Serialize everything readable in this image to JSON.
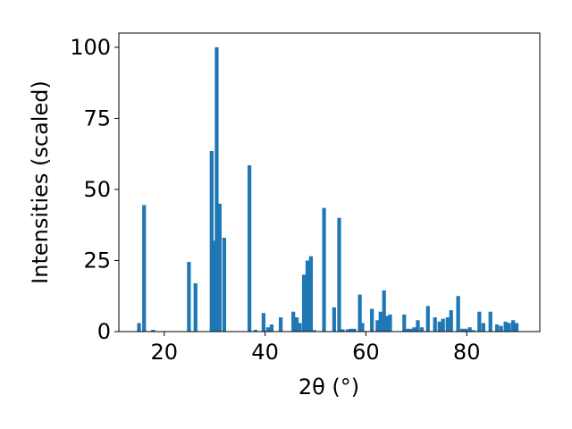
{
  "chart_data": {
    "type": "bar",
    "xlabel": "2θ (°)",
    "ylabel": "Intensities (scaled)",
    "xlim": [
      11,
      94.5
    ],
    "ylim": [
      0,
      105
    ],
    "bar_width": 0.75,
    "color": "#1f77b4",
    "grid": false,
    "x_ticks": [
      20,
      40,
      60,
      80
    ],
    "y_ticks": [
      0,
      25,
      50,
      75,
      100
    ],
    "x": [
      15.0,
      16.0,
      17.8,
      24.9,
      26.2,
      29.4,
      29.9,
      30.4,
      31.0,
      31.9,
      36.9,
      38.1,
      39.7,
      40.6,
      41.3,
      43.1,
      45.6,
      46.3,
      46.9,
      47.7,
      48.4,
      49.1,
      49.8,
      51.7,
      53.7,
      54.7,
      55.4,
      56.4,
      57.0,
      57.7,
      58.8,
      59.3,
      61.2,
      62.3,
      62.9,
      63.6,
      64.1,
      64.8,
      67.6,
      68.2,
      68.9,
      69.6,
      70.3,
      71.1,
      72.3,
      73.7,
      74.6,
      75.3,
      76.2,
      76.9,
      78.3,
      79.1,
      79.8,
      80.6,
      81.3,
      82.5,
      83.3,
      84.7,
      86.0,
      86.8,
      87.7,
      88.4,
      89.2,
      89.9
    ],
    "values": [
      3,
      44.5,
      0.6,
      24.5,
      17,
      63.5,
      32,
      100,
      45,
      33,
      58.5,
      0.6,
      6.5,
      1.5,
      2.5,
      5,
      7,
      5,
      3,
      20,
      25,
      26.5,
      0.5,
      43.5,
      8.5,
      40,
      0.8,
      0.8,
      1,
      1,
      13,
      3,
      8,
      4,
      7,
      14.5,
      5.5,
      6,
      6,
      1,
      1,
      1.5,
      4,
      1.5,
      9,
      5,
      3.5,
      4.5,
      5,
      7.5,
      12.5,
      1,
      1,
      1.5,
      0.5,
      7,
      3,
      7,
      2.5,
      2,
      3.5,
      3,
      4,
      3
    ]
  }
}
